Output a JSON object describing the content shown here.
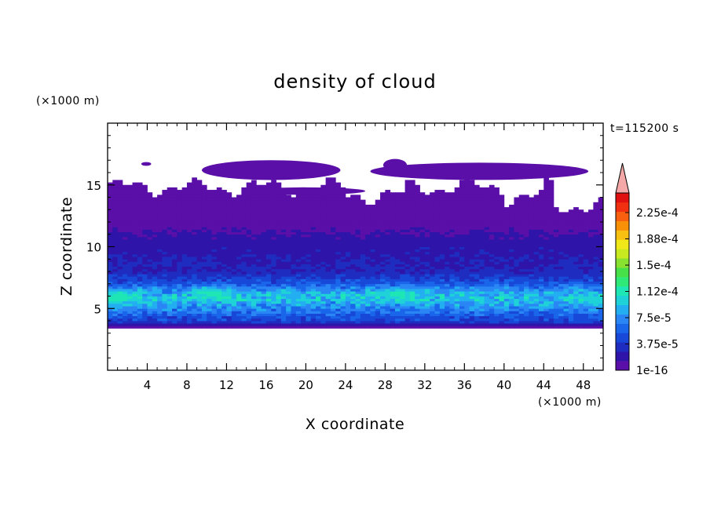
{
  "chart_data": {
    "type": "heatmap",
    "title": "density of cloud",
    "xlabel": "X coordinate",
    "ylabel": "Z coordinate",
    "x_unit": "(×1000 m)",
    "y_unit": "(×1000 m)",
    "time_label": "t=115200 s",
    "xlim": [
      0,
      50
    ],
    "ylim": [
      0,
      20
    ],
    "x_ticks": [
      4,
      8,
      12,
      16,
      20,
      24,
      28,
      32,
      36,
      40,
      44,
      48
    ],
    "y_ticks": [
      5,
      10,
      15
    ],
    "colorbar": {
      "tick_labels": [
        "1e-16",
        "3.75e-5",
        "7.5e-5",
        "1.12e-4",
        "1.5e-4",
        "1.88e-4",
        "2.25e-4"
      ],
      "tick_values": [
        1e-16,
        3.75e-05,
        7.5e-05,
        0.000112,
        0.00015,
        0.000188,
        0.000225
      ],
      "level_colors": [
        "#5a0fa8",
        "#2e14a8",
        "#1f2cc0",
        "#1848d8",
        "#1a66ea",
        "#2a86f4",
        "#22aef0",
        "#1ed2d8",
        "#1ee6b4",
        "#2ee878",
        "#48e048",
        "#88e030",
        "#c8e820",
        "#f0e818",
        "#f8c010",
        "#f89008",
        "#f86010",
        "#f03010",
        "#e01010"
      ],
      "over_color": "#f4a8a8"
    },
    "profile": {
      "z": [
        3.4,
        4,
        5,
        5.8,
        6.3,
        7,
        8,
        9,
        10,
        11,
        12,
        13,
        14,
        15,
        16,
        17
      ],
      "mean_density": [
        1e-16,
        6e-05,
        0.0001,
        0.00013,
        0.00012,
        7.5e-05,
        4e-05,
        3.5e-05,
        3e-05,
        2e-05,
        1.2e-05,
        6e-06,
        3e-06,
        1e-06,
        1e-16,
        1e-16
      ]
    },
    "hotspots": [
      {
        "x": 1,
        "z": 5.9,
        "density": 0.00016
      },
      {
        "x": 10.5,
        "z": 6.2,
        "density": 0.00016
      },
      {
        "x": 17.5,
        "z": 6.1,
        "density": 0.00012
      },
      {
        "x": 29,
        "z": 6.1,
        "density": 0.000155
      },
      {
        "x": 36,
        "z": 6.0,
        "density": 0.00012
      },
      {
        "x": 42,
        "z": 5.8,
        "density": 0.000115
      },
      {
        "x": 49,
        "z": 5.7,
        "density": 0.00014
      }
    ]
  }
}
